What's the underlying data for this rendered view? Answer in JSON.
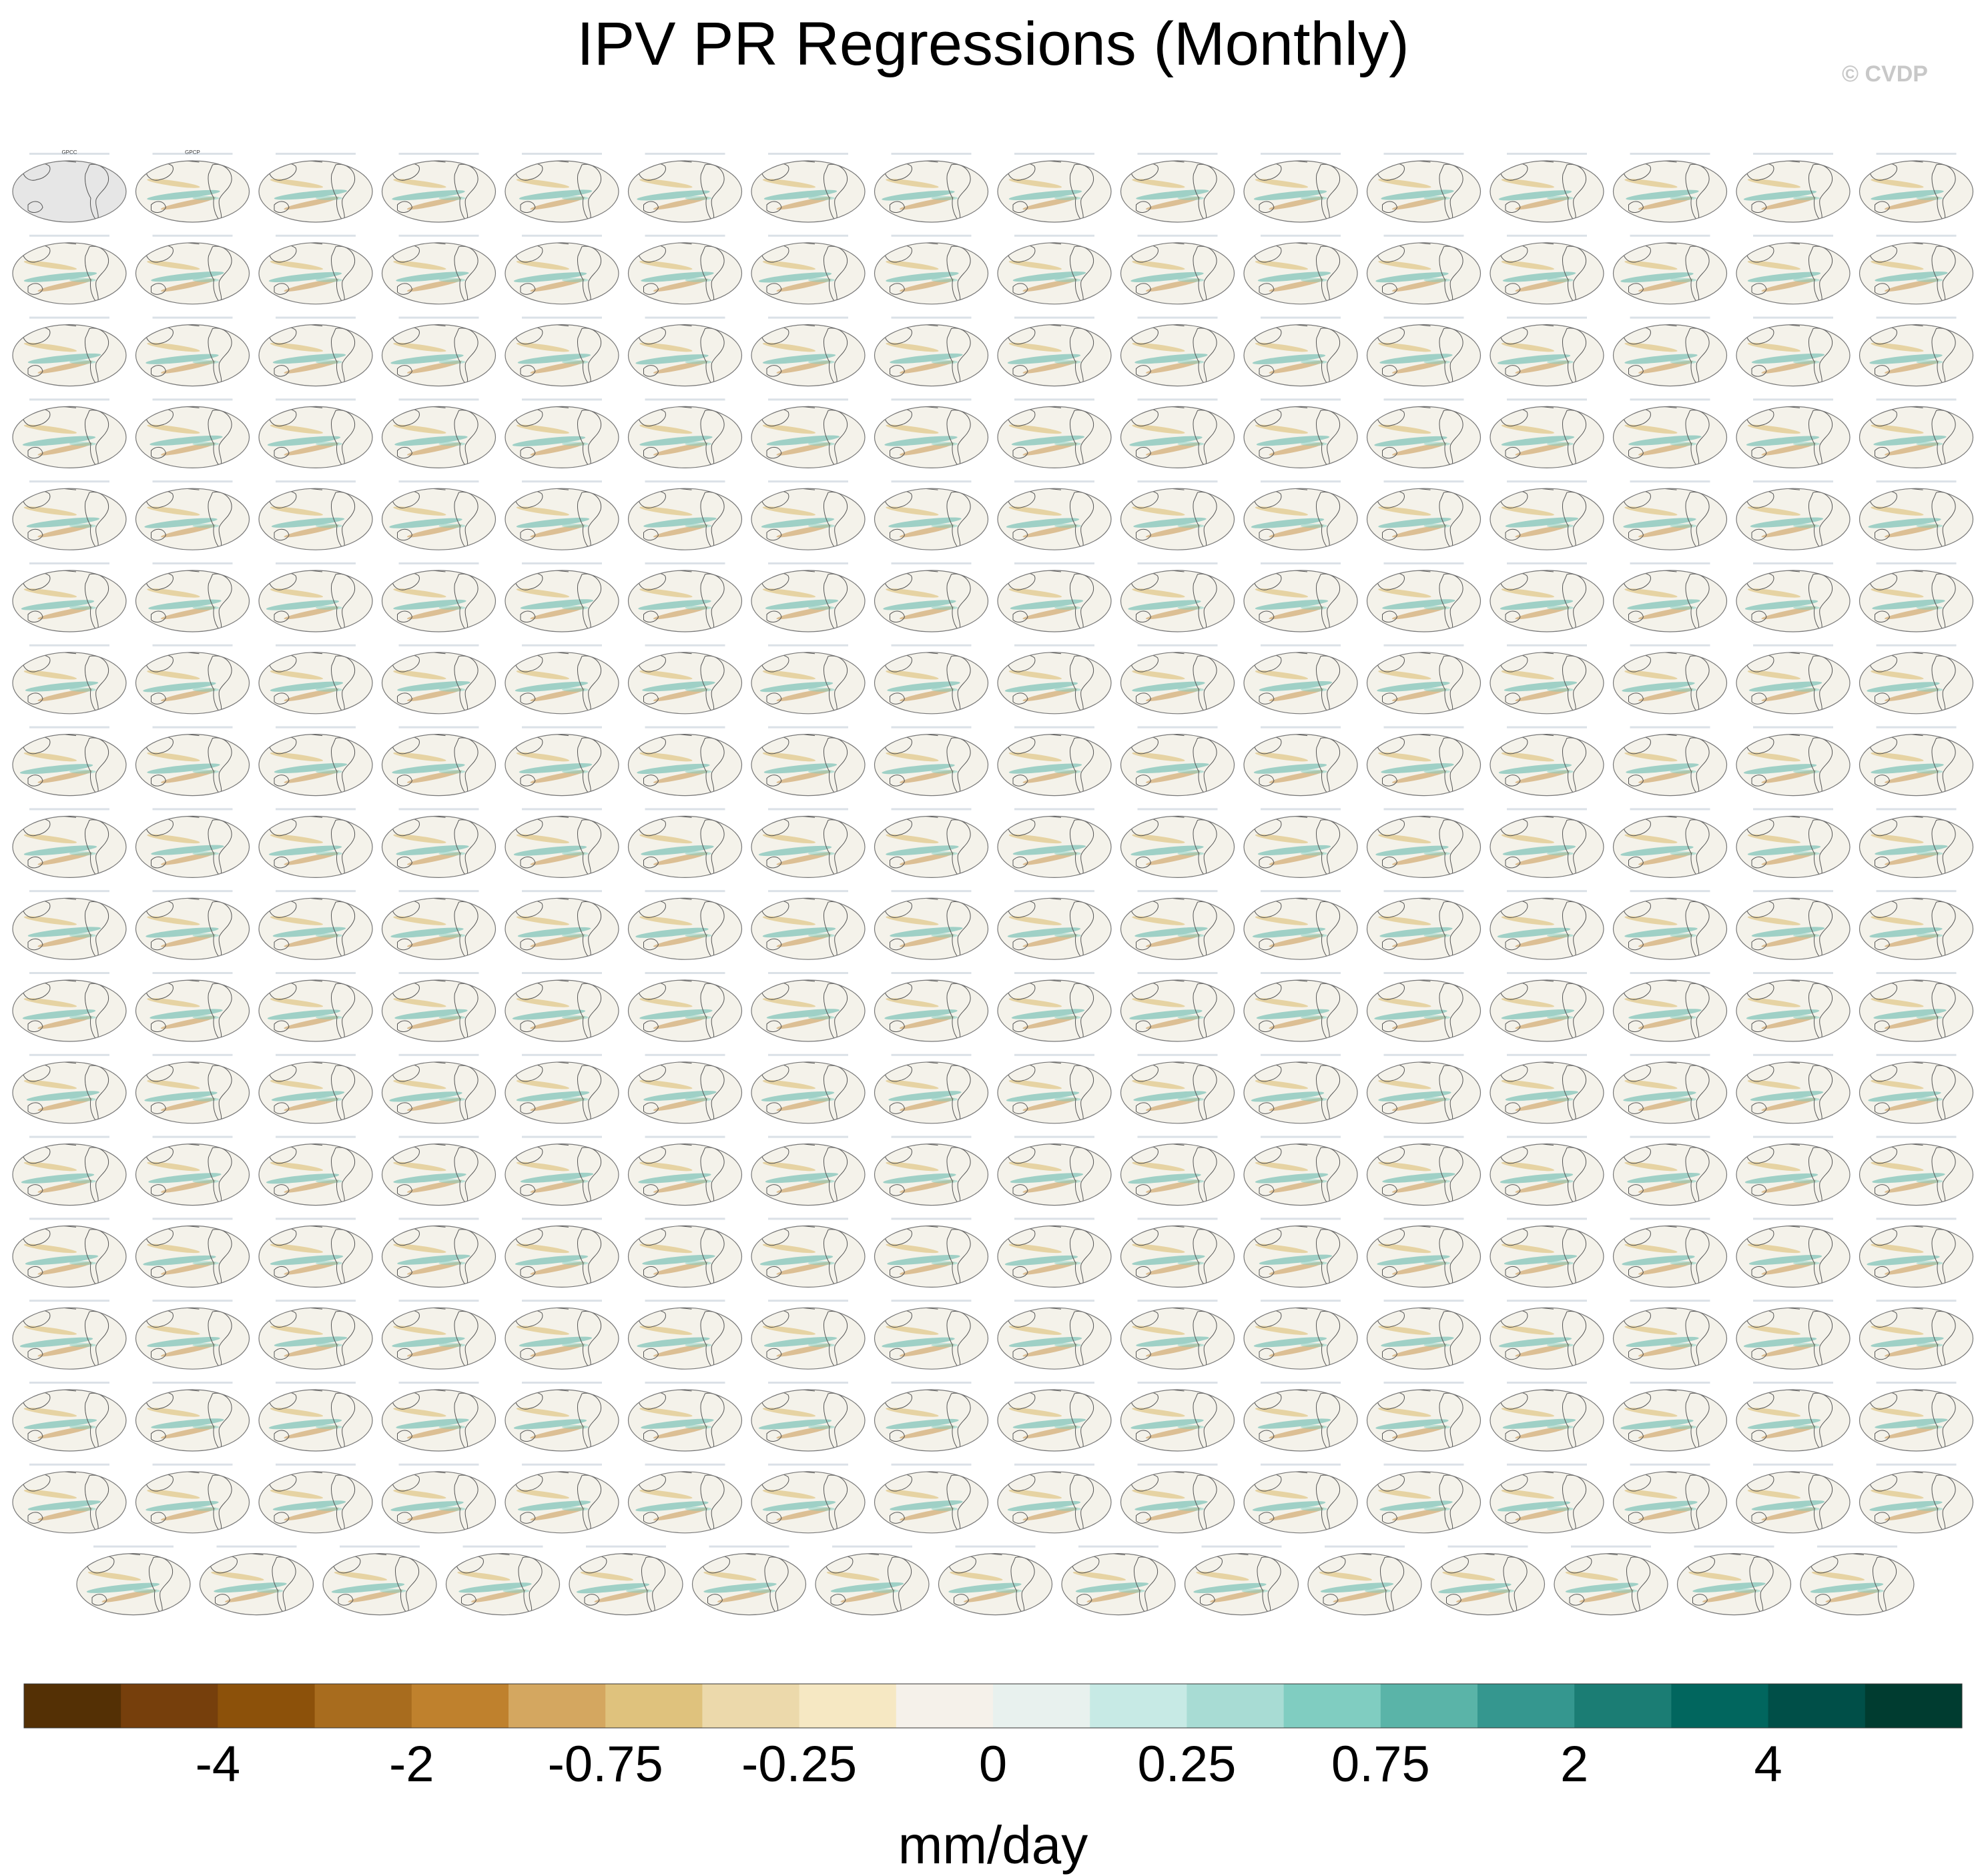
{
  "title": "IPV PR Regressions (Monthly)",
  "watermark": "© CVDP",
  "chart_data": {
    "type": "map-panel-grid",
    "variable": "PR regressed on IPV index",
    "units_label": "mm/day",
    "colorbar": {
      "colors": [
        "#543005",
        "#763f0c",
        "#8c510a",
        "#a86c1e",
        "#bf812d",
        "#d4a760",
        "#dfc27d",
        "#ecd9ab",
        "#f6e8c3",
        "#f5f1ea",
        "#e8f1ee",
        "#c7eae5",
        "#a8dcd4",
        "#80cdc1",
        "#5ab4a8",
        "#35978f",
        "#1b7d74",
        "#01665e",
        "#004f48",
        "#003c30"
      ],
      "tick_labels": [
        "-4",
        "-2",
        "-0.75",
        "-0.25",
        "0",
        "0.25",
        "0.75",
        "2",
        "4"
      ],
      "tick_boundaries": [
        2,
        4,
        6,
        8,
        10,
        12,
        14,
        16,
        18
      ]
    },
    "rows": [
      {
        "panels": 16
      },
      {
        "panels": 16
      },
      {
        "panels": 16
      },
      {
        "panels": 16
      },
      {
        "panels": 16
      },
      {
        "panels": 16
      },
      {
        "panels": 16
      },
      {
        "panels": 16
      },
      {
        "panels": 16
      },
      {
        "panels": 16
      },
      {
        "panels": 16
      },
      {
        "panels": 16
      },
      {
        "panels": 16
      },
      {
        "panels": 16
      },
      {
        "panels": 16
      },
      {
        "panels": 16
      },
      {
        "panels": 16
      },
      {
        "panels": 15
      }
    ],
    "first_panel_titles": [
      "GPCC",
      "GPCP"
    ]
  }
}
